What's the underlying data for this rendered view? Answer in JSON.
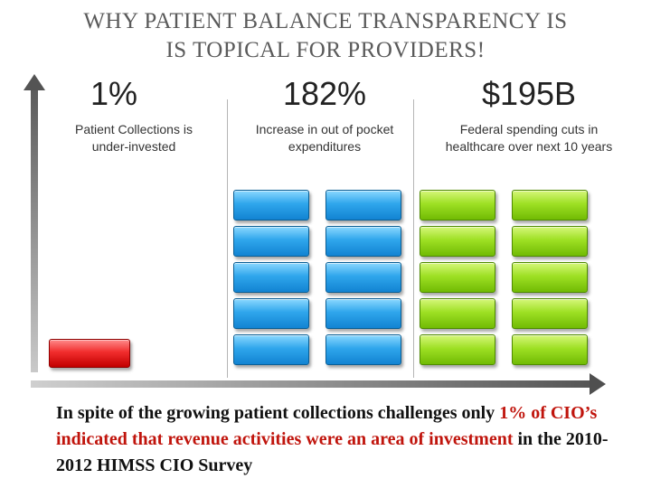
{
  "title": {
    "line1": "WHY PATIENT BALANCE TRANSPARENCY IS",
    "line2": "IS TOPICAL FOR PROVIDERS!"
  },
  "stats": [
    {
      "value": "1%",
      "desc_line1": "Patient Collections is",
      "desc_line2": "under-invested",
      "block_color": "#e61f1f",
      "block_count": 1
    },
    {
      "value": "182%",
      "desc_line1": "Increase in out of pocket",
      "desc_line2": "expenditures",
      "block_color": "#1e95e0",
      "block_count": 10
    },
    {
      "value": "$195B",
      "desc_line1": "Federal spending cuts in",
      "desc_line2": "healthcare over next 10 years",
      "block_color": "#8fd31a",
      "block_count": 10
    }
  ],
  "caption": {
    "part1": "In spite of the growing patient collections challenges only ",
    "highlight1": "1%",
    "part2": " ",
    "highlight2": "of CIO’s indicated that revenue activities were an area of",
    "part3": " ",
    "highlight3": "investment",
    "part4": " in the 2010-2012 HIMSS CIO Survey"
  },
  "colors": {
    "title": "#5a5a5a",
    "highlight": "#c0140c"
  }
}
